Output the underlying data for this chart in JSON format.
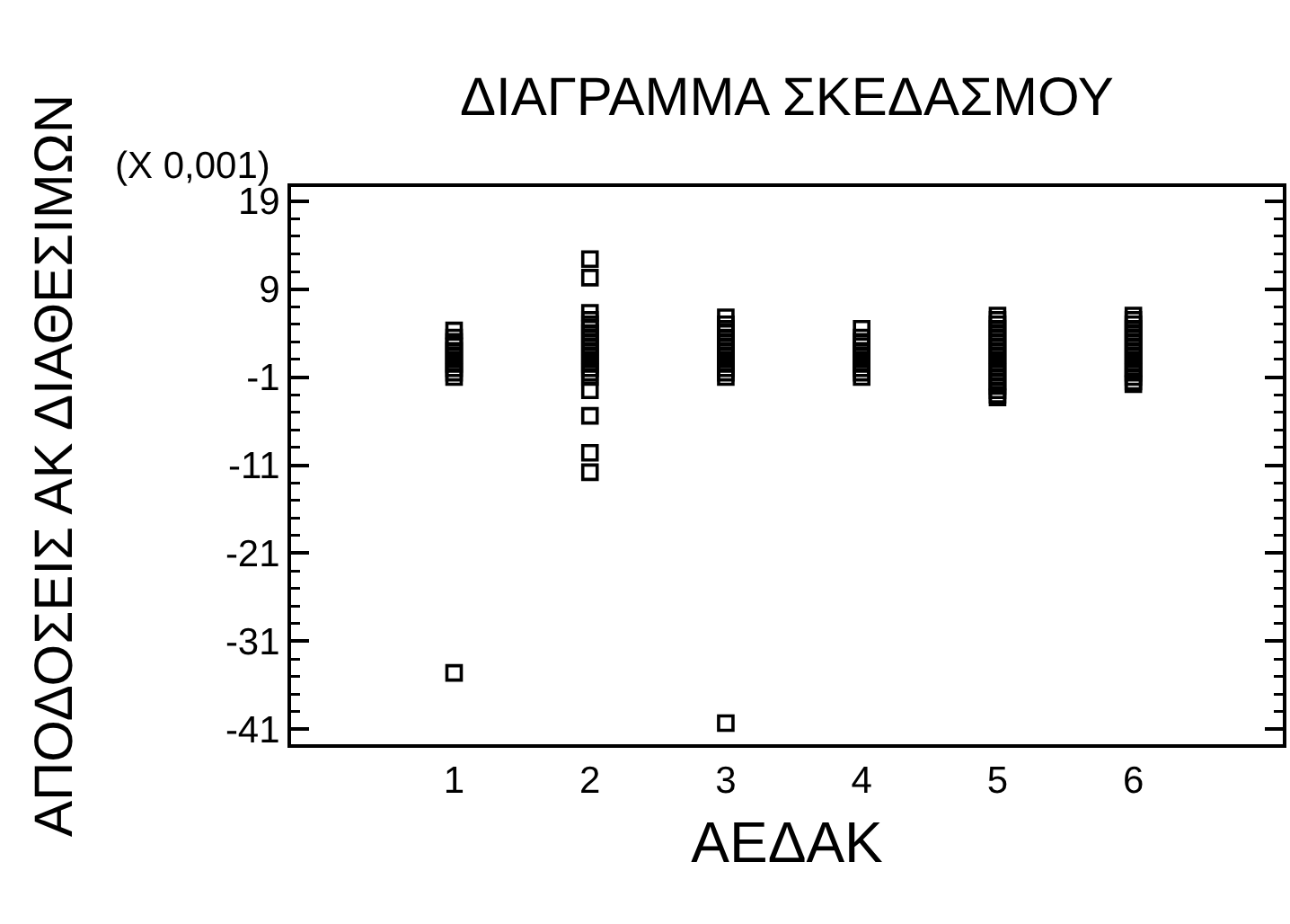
{
  "chart_data": {
    "type": "scatter",
    "title": "ΔΙΑΓΡΑΜΜΑ ΣΚΕΔΑΣΜΟΥ",
    "xlabel": "ΑΕΔΑΚ",
    "ylabel": "ΑΠΟΔΟΣΕΙΣ ΑΚ ΔΙΑΘΕΣΙΜΩΝ",
    "annotations": [
      "(X 0,001)"
    ],
    "series": [
      {
        "color": "#000000",
        "x": [
          1,
          1,
          1,
          1,
          1,
          1,
          1,
          1,
          1,
          1,
          1,
          1,
          2,
          2,
          2,
          2,
          2,
          2,
          2,
          2,
          2,
          2,
          2,
          2,
          2,
          2,
          2,
          2,
          2,
          2,
          2,
          2,
          2,
          3,
          3,
          3,
          3,
          3,
          3,
          3,
          3,
          3,
          3,
          3,
          3,
          3,
          3,
          3,
          4,
          4,
          4,
          4,
          4,
          4,
          4,
          4,
          4,
          4,
          4,
          5,
          5,
          5,
          5,
          5,
          5,
          5,
          5,
          5,
          5,
          5,
          5,
          5,
          5,
          5,
          5,
          5,
          5,
          5,
          5,
          6,
          6,
          6,
          6,
          6,
          6,
          6,
          6,
          6,
          6,
          6,
          6,
          6,
          6,
          6,
          6,
          6
        ],
        "values": [
          4.3,
          3.5,
          3,
          2.5,
          2,
          1.5,
          1,
          0.5,
          0,
          -0.5,
          -1,
          -34.6,
          12.4,
          10.3,
          6.3,
          5.5,
          5,
          4.5,
          4,
          3.5,
          3,
          2.5,
          2,
          1.5,
          1,
          0.5,
          0,
          -0.5,
          -1,
          -2.5,
          -5.4,
          -9.6,
          -11.8,
          5.8,
          5,
          4.5,
          4,
          3.5,
          3,
          2.5,
          2,
          1.5,
          1,
          0.5,
          0,
          -0.5,
          -1,
          -40.3,
          4.5,
          3.5,
          3,
          2.5,
          2,
          1.5,
          1,
          0.5,
          0,
          -0.5,
          -1,
          6,
          5.5,
          5,
          4.5,
          4,
          3.5,
          3,
          2.5,
          2,
          1.5,
          1,
          0.5,
          0,
          -0.5,
          -1,
          -1.5,
          -2,
          -2.5,
          -3,
          -3.3,
          6,
          5.5,
          5,
          4.5,
          4,
          3.5,
          3,
          2.5,
          2,
          1.5,
          1,
          0.5,
          0,
          -0.5,
          -1,
          -1.5,
          -1.8
        ]
      }
    ],
    "marker": "square",
    "grid": false,
    "xlim": [
      -0.2,
      7.1
    ],
    "xticks": [
      1,
      2,
      3,
      4,
      5,
      6
    ],
    "ylim": [
      -42.7,
      20.6
    ],
    "yticks": [
      19,
      {
        "value": 17,
        "label": null
      },
      {
        "value": 15,
        "label": null
      },
      {
        "value": 13,
        "label": null
      },
      {
        "value": 11,
        "label": null
      },
      9,
      {
        "value": 7,
        "label": null
      },
      {
        "value": 5,
        "label": null
      },
      {
        "value": 3,
        "label": null
      },
      {
        "value": 1,
        "label": null
      },
      -1,
      {
        "value": -3,
        "label": null
      },
      {
        "value": -5,
        "label": null
      },
      {
        "value": -7,
        "label": null
      },
      {
        "value": -9,
        "label": null
      },
      -11,
      {
        "value": -13,
        "label": null
      },
      {
        "value": -15,
        "label": null
      },
      {
        "value": -17,
        "label": null
      },
      {
        "value": -19,
        "label": null
      },
      -21,
      {
        "value": -23,
        "label": null
      },
      {
        "value": -25,
        "label": null
      },
      {
        "value": -27,
        "label": null
      },
      {
        "value": -29,
        "label": null
      },
      -31,
      {
        "value": -33,
        "label": null
      },
      {
        "value": -35,
        "label": null
      },
      {
        "value": -37,
        "label": null
      },
      {
        "value": -39,
        "label": null
      },
      -41
    ]
  }
}
